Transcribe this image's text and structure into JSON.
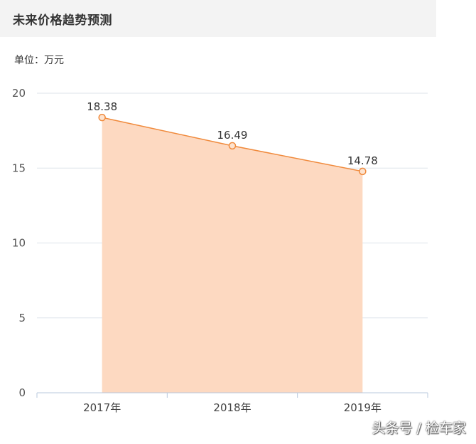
{
  "header": {
    "title": "未来价格趋势预测"
  },
  "unit_label": "单位：万元",
  "watermark": "头条号 / 检车家",
  "colors": {
    "line": "#f08a3c",
    "area": "#fdd9c1",
    "grid": "#dde3ea",
    "axis": "#b9c8dc"
  },
  "chart_data": {
    "type": "area",
    "title": "",
    "xlabel": "",
    "ylabel": "",
    "categories": [
      "2017年",
      "2018年",
      "2019年"
    ],
    "values": [
      18.38,
      16.49,
      14.78
    ],
    "data_labels": [
      "18.38",
      "16.49",
      "14.78"
    ],
    "ylim": [
      0,
      20
    ],
    "yticks": [
      "0",
      "5",
      "10",
      "15",
      "20"
    ],
    "grid": true,
    "legend": "none"
  }
}
